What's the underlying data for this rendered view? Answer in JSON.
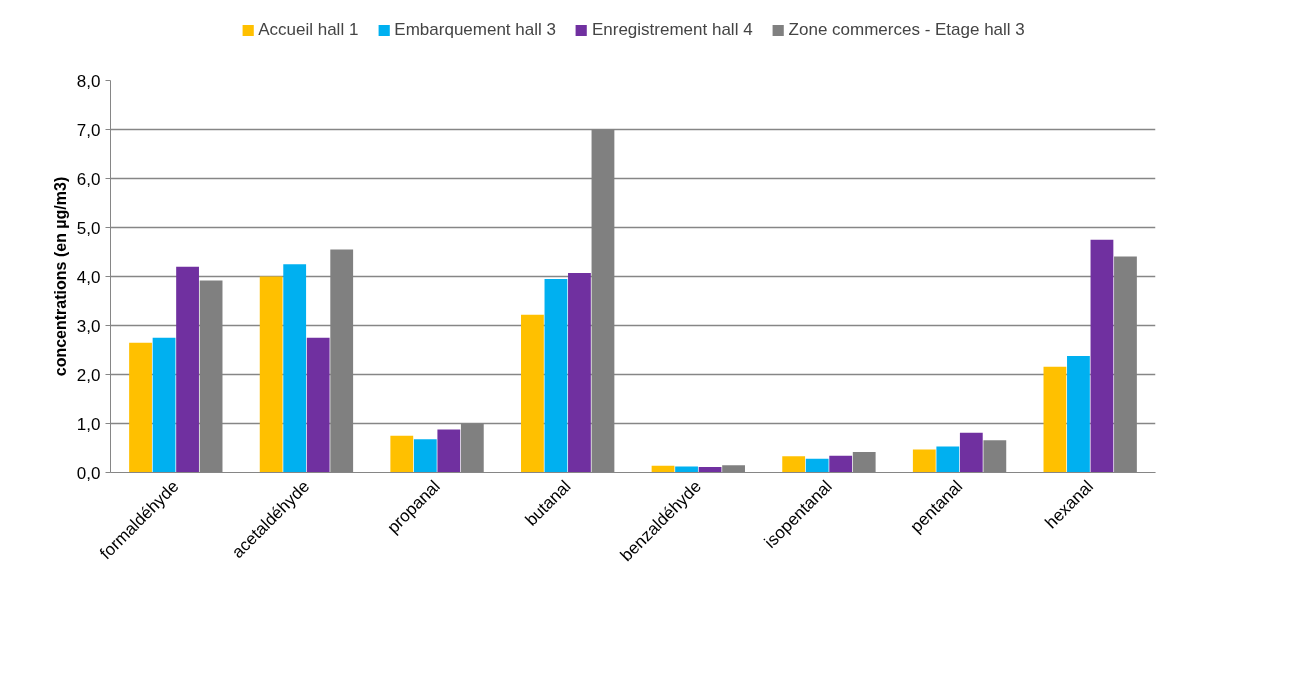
{
  "chart_data": {
    "type": "bar",
    "ylabel": "concentrations (en µg/m3)",
    "categories": [
      "formaldéhyde",
      "acetaldéhyde",
      "propanal",
      "butanal",
      "benzaldéhyde",
      "isopentanal",
      "pentanal",
      "hexanal"
    ],
    "series": [
      {
        "name": "Accueil hall 1",
        "color": "#ffc000",
        "values": [
          2.65,
          4.0,
          0.75,
          3.22,
          0.14,
          0.33,
          0.47,
          2.16
        ]
      },
      {
        "name": "Embarquement hall 3",
        "color": "#00b0f0",
        "values": [
          2.75,
          4.25,
          0.68,
          3.95,
          0.12,
          0.28,
          0.53,
          2.38
        ]
      },
      {
        "name": "Enregistrement hall 4",
        "color": "#7030a0",
        "values": [
          4.2,
          2.75,
          0.88,
          4.07,
          0.11,
          0.34,
          0.81,
          4.75
        ]
      },
      {
        "name": "Zone commerces - Etage hall 3",
        "color": "#808080",
        "values": [
          3.92,
          4.55,
          1.0,
          7.0,
          0.15,
          0.42,
          0.66,
          4.41
        ]
      }
    ],
    "ylim": [
      0,
      8
    ],
    "yticks": [
      {
        "value": 0,
        "label": "0,0"
      },
      {
        "value": 1,
        "label": "1,0"
      },
      {
        "value": 2,
        "label": "2,0"
      },
      {
        "value": 3,
        "label": "3,0"
      },
      {
        "value": 4,
        "label": "4,0"
      },
      {
        "value": 5,
        "label": "5,0"
      },
      {
        "value": 6,
        "label": "6,0"
      },
      {
        "value": 7,
        "label": "7,0"
      },
      {
        "value": 8,
        "label": "8,0"
      }
    ],
    "grid": "y",
    "legend": "top"
  }
}
